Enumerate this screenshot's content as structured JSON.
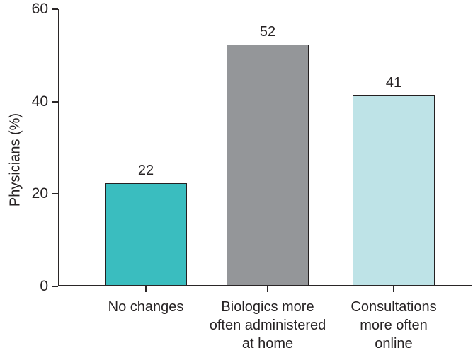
{
  "chart_data": {
    "type": "bar",
    "title": "",
    "xlabel": "",
    "ylabel": "Physicians (%)",
    "ylim": [
      0,
      60
    ],
    "yticks": [
      0,
      20,
      40,
      60
    ],
    "grid": false,
    "legend_position": "none",
    "categories": [
      "No changes",
      "Biologics more often administered at home",
      "Consultations more often online"
    ],
    "category_lines": [
      [
        "No changes"
      ],
      [
        "Biologics more",
        "often administered",
        "at home"
      ],
      [
        "Consultations",
        "more often",
        "online"
      ]
    ],
    "values": [
      22,
      52,
      41
    ],
    "value_labels": [
      "22",
      "52",
      "41"
    ],
    "bar_colors": [
      "#3abdbf",
      "#949699",
      "#bee3e7"
    ],
    "axis_color": "#2a2627",
    "text_color": "#262223",
    "background_color": "#ffffff"
  }
}
